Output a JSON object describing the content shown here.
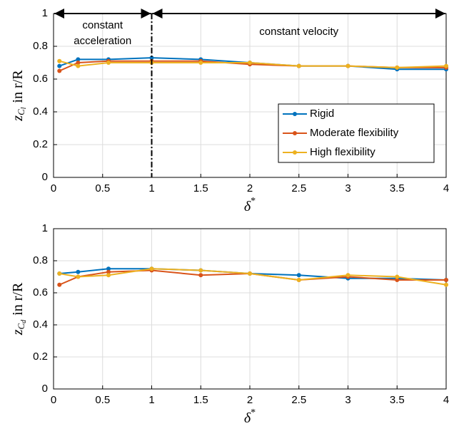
{
  "chart_data": [
    {
      "type": "line",
      "x": [
        0.06,
        0.25,
        0.56,
        1,
        1.5,
        2,
        2.5,
        3,
        3.5,
        4
      ],
      "series": [
        {
          "name": "Rigid",
          "color": "#0072BD",
          "values": [
            0.68,
            0.72,
            0.72,
            0.73,
            0.72,
            0.7,
            0.68,
            0.68,
            0.66,
            0.66
          ]
        },
        {
          "name": "Moderate flexibility",
          "color": "#D95319",
          "values": [
            0.65,
            0.7,
            0.71,
            0.71,
            0.71,
            0.69,
            0.68,
            0.68,
            0.67,
            0.67
          ]
        },
        {
          "name": "High flexibility",
          "color": "#EDB120",
          "values": [
            0.71,
            0.68,
            0.7,
            0.7,
            0.7,
            0.7,
            0.68,
            0.68,
            0.67,
            0.68
          ]
        }
      ],
      "xlim": [
        0,
        4
      ],
      "xticks": [
        0,
        0.5,
        1,
        1.5,
        2,
        2.5,
        3,
        3.5,
        4
      ],
      "ylim": [
        0,
        1
      ],
      "yticks": [
        0,
        0.2,
        0.4,
        0.6,
        0.8,
        1
      ],
      "grid": true,
      "legend": "lower right",
      "xlabel": {
        "symbol": "δ",
        "sup": "*"
      },
      "ylabel": {
        "symbol": "z",
        "sub": "C",
        "subsub": "l",
        "text": "in r/R"
      },
      "divider_x": 1,
      "regions": [
        {
          "lines": [
            "constant",
            "acceleration"
          ],
          "x": [
            0,
            1
          ]
        },
        {
          "lines": [
            "constant velocity"
          ],
          "x": [
            1,
            4
          ]
        }
      ]
    },
    {
      "type": "line",
      "x": [
        0.06,
        0.25,
        0.56,
        1,
        1.5,
        2,
        2.5,
        3,
        3.5,
        4
      ],
      "series": [
        {
          "name": "Rigid",
          "color": "#0072BD",
          "values": [
            0.72,
            0.73,
            0.75,
            0.75,
            0.74,
            0.72,
            0.71,
            0.69,
            0.69,
            0.68
          ]
        },
        {
          "name": "Moderate flexibility",
          "color": "#D95319",
          "values": [
            0.65,
            0.7,
            0.73,
            0.74,
            0.71,
            0.72,
            0.68,
            0.7,
            0.68,
            0.68
          ]
        },
        {
          "name": "High flexibility",
          "color": "#EDB120",
          "values": [
            0.72,
            0.7,
            0.71,
            0.75,
            0.74,
            0.72,
            0.68,
            0.71,
            0.7,
            0.65
          ]
        }
      ],
      "xlim": [
        0,
        4
      ],
      "xticks": [
        0,
        0.5,
        1,
        1.5,
        2,
        2.5,
        3,
        3.5,
        4
      ],
      "ylim": [
        0,
        1
      ],
      "yticks": [
        0,
        0.2,
        0.4,
        0.6,
        0.8,
        1
      ],
      "grid": true,
      "xlabel": {
        "symbol": "δ",
        "sup": "*"
      },
      "ylabel": {
        "symbol": "z",
        "sub": "C",
        "subsub": "d",
        "text": "in r/R"
      }
    }
  ]
}
